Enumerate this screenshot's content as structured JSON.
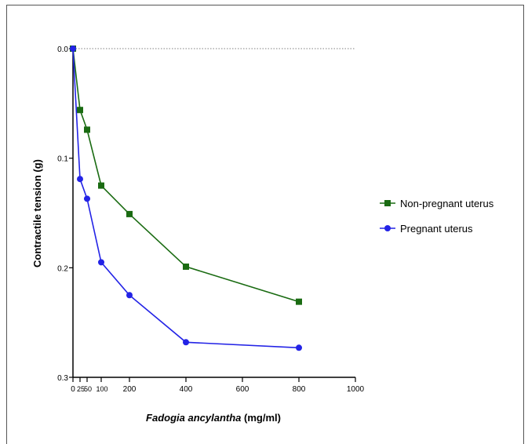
{
  "chart_data": {
    "type": "line",
    "xlabel_italic": "Fadogia ancylantha",
    "xlabel_unit": " (mg/ml)",
    "ylabel": "Contractile tension  (g)",
    "xlim": [
      0,
      1000
    ],
    "ylim": [
      0,
      0.3
    ],
    "y_inverted": true,
    "x_ticks_major": [
      0,
      200,
      400,
      600,
      800,
      1000
    ],
    "x_ticks_small": [
      25,
      50,
      100
    ],
    "x_tick_labels_major": [
      "0",
      "200",
      "400",
      "600",
      "800",
      "1000"
    ],
    "x_tick_labels_small": [
      "25",
      "50",
      "100"
    ],
    "y_ticks": [
      0.0,
      0.1,
      0.2,
      0.3
    ],
    "y_tick_labels": [
      "0.0",
      "0.1",
      "0.2",
      "0.3"
    ],
    "reference_line_y": 0.0,
    "legend_position": "right",
    "series": [
      {
        "name": "Non-pregnant uterus",
        "color": "#1a6b12",
        "marker": "square",
        "x": [
          0,
          25,
          50,
          100,
          200,
          400,
          800
        ],
        "y": [
          0.0,
          0.056,
          0.074,
          0.125,
          0.151,
          0.199,
          0.231
        ]
      },
      {
        "name": "Pregnant uterus",
        "color": "#2323e6",
        "marker": "circle",
        "x": [
          0,
          25,
          50,
          100,
          200,
          400,
          800
        ],
        "y": [
          0.0,
          0.119,
          0.137,
          0.195,
          0.225,
          0.268,
          0.273
        ]
      }
    ]
  }
}
